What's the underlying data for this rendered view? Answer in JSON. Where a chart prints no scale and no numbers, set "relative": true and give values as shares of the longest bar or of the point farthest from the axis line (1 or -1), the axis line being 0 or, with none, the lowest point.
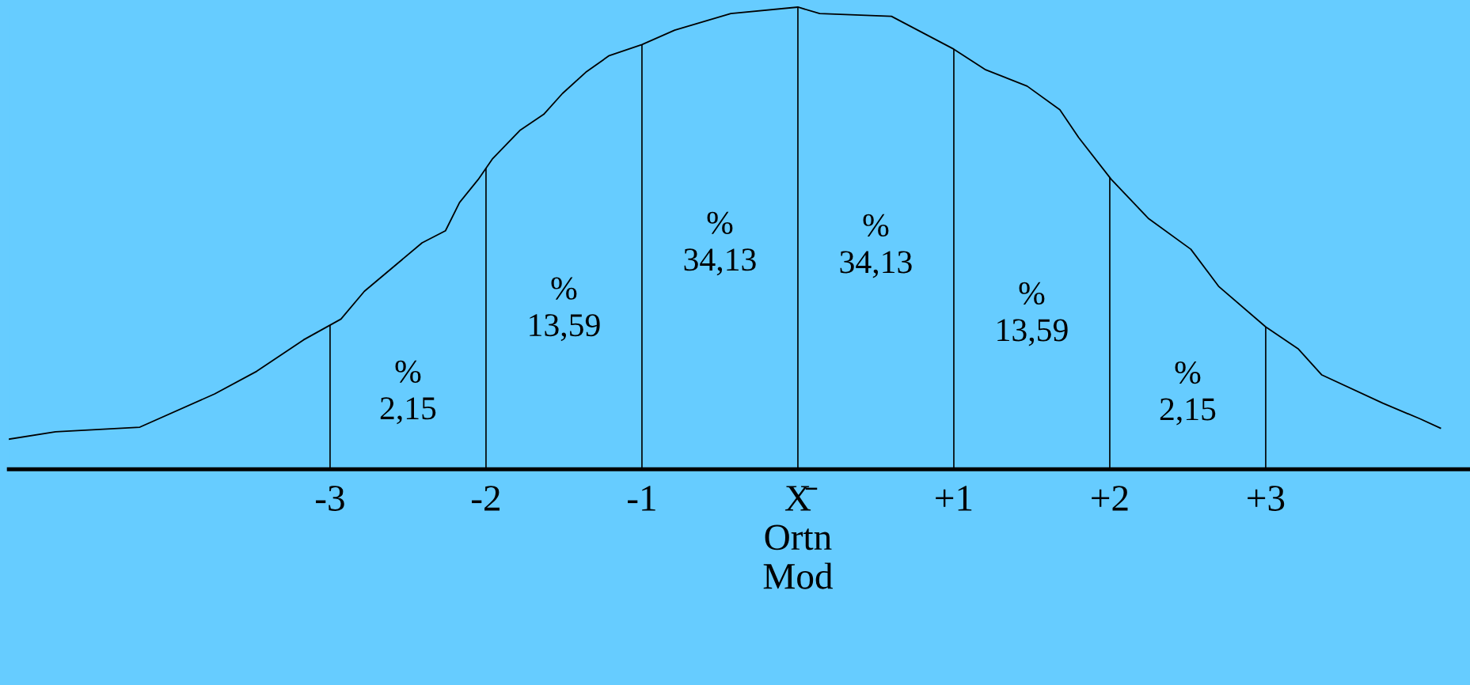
{
  "chart_data": {
    "type": "line",
    "relative": true,
    "x": [
      -5.06,
      -4.76,
      -4.22,
      -3.74,
      -3.47,
      -3.17,
      -2.93,
      -2.78,
      -2.41,
      -2.26,
      -2.17,
      -2.05,
      -1.96,
      -1.78,
      -1.63,
      -1.51,
      -1.36,
      -1.21,
      -1.0,
      -0.79,
      -0.43,
      0,
      0.14,
      0.6,
      1.0,
      1.2,
      1.47,
      1.68,
      1.8,
      2.01,
      2.25,
      2.52,
      2.7,
      3.0,
      3.21,
      3.36,
      3.75,
      3.99,
      4.12
    ],
    "series": [
      {
        "color": "#000000",
        "values": [
          0.065,
          0.081,
          0.091,
          0.163,
          0.212,
          0.28,
          0.325,
          0.385,
          0.49,
          0.516,
          0.577,
          0.627,
          0.671,
          0.734,
          0.768,
          0.813,
          0.859,
          0.895,
          0.919,
          0.95,
          0.986,
          1.0,
          0.986,
          0.98,
          0.909,
          0.865,
          0.829,
          0.778,
          0.718,
          0.627,
          0.542,
          0.476,
          0.395,
          0.308,
          0.26,
          0.204,
          0.143,
          0.109,
          0.089
        ]
      }
    ],
    "xlim": [
      -5.06,
      4.31
    ],
    "xticks": [
      -3,
      -2,
      -1,
      {
        "value": 0,
        "label": "X̄\nOrtn\nMod"
      },
      {
        "value": 1,
        "label": "+1"
      },
      {
        "value": 2,
        "label": "+2"
      },
      {
        "value": 3,
        "label": "+3"
      }
    ],
    "ref_lines": [
      {
        "axis": "x",
        "value": -3,
        "color": "#000000"
      },
      {
        "axis": "x",
        "value": -2,
        "color": "#000000"
      },
      {
        "axis": "x",
        "value": -1,
        "color": "#000000"
      },
      {
        "axis": "x",
        "value": 0,
        "color": "#000000"
      },
      {
        "axis": "x",
        "value": 1,
        "color": "#000000"
      },
      {
        "axis": "x",
        "value": 2,
        "color": "#000000"
      },
      {
        "axis": "x",
        "value": 3,
        "color": "#000000"
      }
    ],
    "annotations": [
      "%\n2,15",
      "%\n13,59",
      "%\n34,13",
      "%\n34,13",
      "%\n13,59",
      "%\n2,15"
    ],
    "tick_labels": "x",
    "grid": false,
    "marker": "none",
    "line_style": "solid"
  }
}
